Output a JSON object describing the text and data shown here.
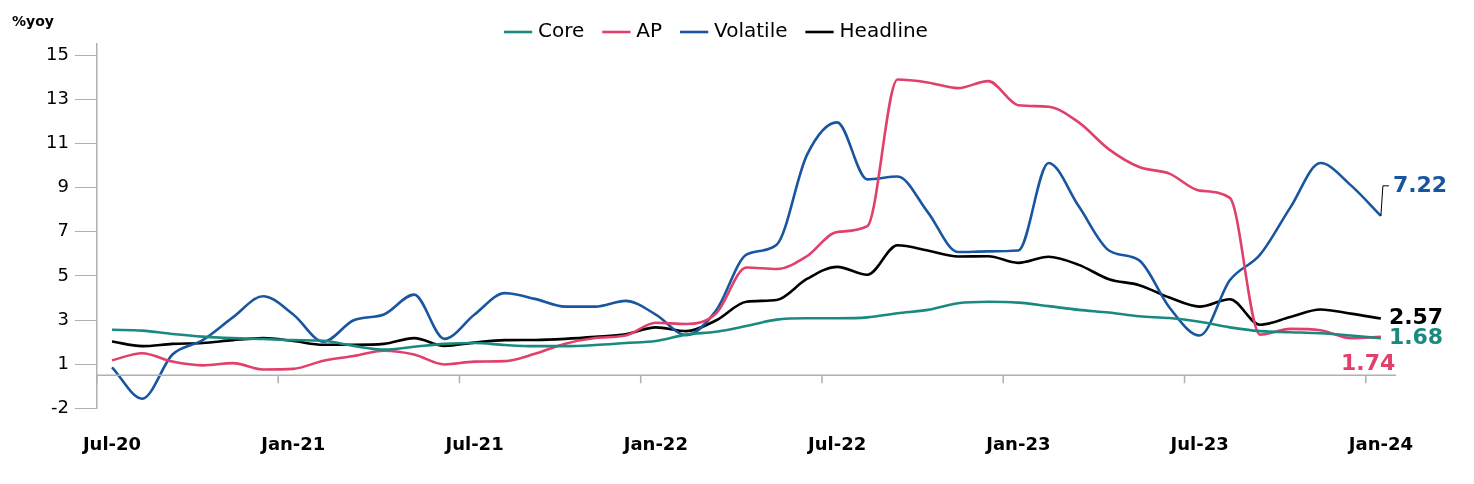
{
  "chart_data": {
    "type": "line",
    "ylabel": "%yoy",
    "categories": [
      "Jul-20",
      null,
      null,
      null,
      null,
      null,
      "Jan-21",
      null,
      null,
      null,
      null,
      null,
      "Jul-21",
      null,
      null,
      null,
      null,
      null,
      "Jan-22",
      null,
      null,
      null,
      null,
      null,
      "Jul-22",
      null,
      null,
      null,
      null,
      null,
      "Jan-23",
      null,
      null,
      null,
      null,
      null,
      "Jul-23",
      null,
      null,
      null,
      null,
      null,
      "Jan-24"
    ],
    "series": [
      {
        "name": "Core",
        "color": "#1a8a80",
        "values": [
          2.06,
          2.02,
          1.87,
          1.75,
          1.68,
          1.64,
          1.59,
          1.56,
          1.33,
          1.16,
          1.29,
          1.42,
          1.46,
          1.37,
          1.32,
          1.32,
          1.37,
          1.46,
          1.55,
          1.84,
          1.97,
          2.23,
          2.52,
          2.58,
          2.58,
          2.62,
          2.81,
          2.96,
          3.26,
          3.33,
          3.29,
          3.13,
          2.96,
          2.84,
          2.67,
          2.59,
          2.42,
          2.17,
          2.0,
          1.95,
          1.9,
          1.8,
          1.68
        ],
        "value_labels": [
          null,
          null,
          null,
          null,
          null,
          null,
          null,
          null,
          null,
          null,
          null,
          null,
          null,
          null,
          null,
          null,
          null,
          null,
          null,
          null,
          null,
          null,
          null,
          null,
          null,
          null,
          null,
          null,
          null,
          null,
          null,
          null,
          null,
          null,
          null,
          null,
          null,
          null,
          null,
          null,
          null,
          null,
          "1.68"
        ]
      },
      {
        "name": "AP",
        "color": "#e0406a",
        "values": [
          0.68,
          1.0,
          0.62,
          0.45,
          0.55,
          0.26,
          0.29,
          0.66,
          0.87,
          1.11,
          0.94,
          0.49,
          0.62,
          0.64,
          0.97,
          1.43,
          1.69,
          1.8,
          2.38,
          2.32,
          2.81,
          4.88,
          4.81,
          5.39,
          6.49,
          6.75,
          13.39,
          13.26,
          13.0,
          13.32,
          12.23,
          12.16,
          11.45,
          10.23,
          9.43,
          9.13,
          8.36,
          8.03,
          1.84,
          2.1,
          2.04,
          1.68,
          1.74
        ],
        "value_labels": [
          null,
          null,
          null,
          null,
          null,
          null,
          null,
          null,
          null,
          null,
          null,
          null,
          null,
          null,
          null,
          null,
          null,
          null,
          null,
          null,
          null,
          null,
          null,
          null,
          null,
          null,
          null,
          null,
          null,
          null,
          null,
          null,
          null,
          null,
          null,
          null,
          null,
          null,
          null,
          null,
          null,
          null,
          "1.74"
        ]
      },
      {
        "name": "Volatile",
        "color": "#1a56a0",
        "values": [
          0.36,
          -1.06,
          0.94,
          1.59,
          2.62,
          3.58,
          2.75,
          1.52,
          2.49,
          2.75,
          3.65,
          1.65,
          2.75,
          3.72,
          3.46,
          3.11,
          3.11,
          3.37,
          2.75,
          1.82,
          2.94,
          5.46,
          5.91,
          9.97,
          11.45,
          8.87,
          9.0,
          7.39,
          5.58,
          5.61,
          5.65,
          9.61,
          7.65,
          5.65,
          5.2,
          3.07,
          1.8,
          4.3,
          5.46,
          7.59,
          9.61,
          8.61,
          7.22
        ],
        "value_labels": [
          null,
          null,
          null,
          null,
          null,
          null,
          null,
          null,
          null,
          null,
          null,
          null,
          null,
          null,
          null,
          null,
          null,
          null,
          null,
          null,
          null,
          null,
          null,
          null,
          null,
          null,
          null,
          null,
          null,
          null,
          null,
          null,
          null,
          null,
          null,
          null,
          null,
          null,
          null,
          null,
          null,
          null,
          "7.22"
        ]
      },
      {
        "name": "Headline",
        "color": "#000000",
        "values": [
          1.53,
          1.32,
          1.42,
          1.46,
          1.59,
          1.68,
          1.55,
          1.38,
          1.38,
          1.42,
          1.68,
          1.33,
          1.48,
          1.59,
          1.6,
          1.65,
          1.74,
          1.86,
          2.17,
          2.0,
          2.49,
          3.33,
          3.41,
          4.36,
          4.91,
          4.55,
          5.89,
          5.65,
          5.38,
          5.39,
          5.09,
          5.37,
          5.0,
          4.35,
          4.08,
          3.52,
          3.11,
          3.44,
          2.29,
          2.64,
          2.98,
          2.79,
          2.57
        ],
        "value_labels": [
          null,
          null,
          null,
          null,
          null,
          null,
          null,
          null,
          null,
          null,
          null,
          null,
          null,
          null,
          null,
          null,
          null,
          null,
          null,
          null,
          null,
          null,
          null,
          null,
          null,
          null,
          null,
          null,
          null,
          null,
          null,
          null,
          null,
          null,
          null,
          null,
          null,
          null,
          null,
          null,
          null,
          null,
          "2.57"
        ]
      }
    ],
    "ylim": [
      -1.5,
      15
    ],
    "yticks": [
      {
        "value": -1.5,
        "label": "-2"
      },
      {
        "value": 0.5,
        "label": "1"
      },
      {
        "value": 2.5,
        "label": "3"
      },
      {
        "value": 4.5,
        "label": "5"
      },
      {
        "value": 6.5,
        "label": "7"
      },
      {
        "value": 8.5,
        "label": "9"
      },
      {
        "value": 10.5,
        "label": "11"
      },
      {
        "value": 12.5,
        "label": "13"
      },
      {
        "value": 14.5,
        "label": "15"
      }
    ],
    "ref_lines": [
      {
        "axis": "y",
        "value": 0,
        "color": "#b0b0b0"
      }
    ],
    "legend": "top",
    "grid": false,
    "marker": "none",
    "line_style": "solid"
  }
}
